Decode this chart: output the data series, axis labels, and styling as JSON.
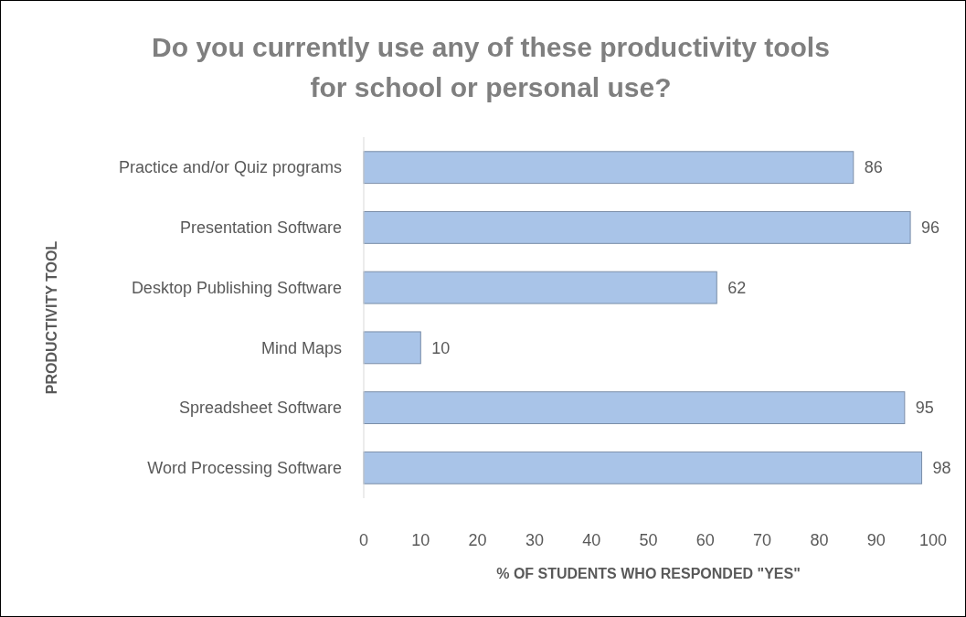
{
  "chart_data": {
    "type": "bar",
    "orientation": "horizontal",
    "title": "Do you currently use any of these productivity tools for school or personal use?",
    "xlabel": "% OF STUDENTS WHO RESPONDED \"YES\"",
    "ylabel": "PRODUCTIVITY TOOL",
    "categories": [
      "Practice and/or Quiz programs",
      "Presentation Software",
      "Desktop Publishing Software",
      "Mind Maps",
      "Spreadsheet Software",
      "Word Processing Software"
    ],
    "values": [
      86,
      96,
      62,
      10,
      95,
      98
    ],
    "color": "#a9c4e8",
    "xlim": [
      0,
      100
    ],
    "xticks": [
      0,
      10,
      20,
      30,
      40,
      50,
      60,
      70,
      80,
      90,
      100
    ],
    "data_labels": true,
    "grid": false
  }
}
